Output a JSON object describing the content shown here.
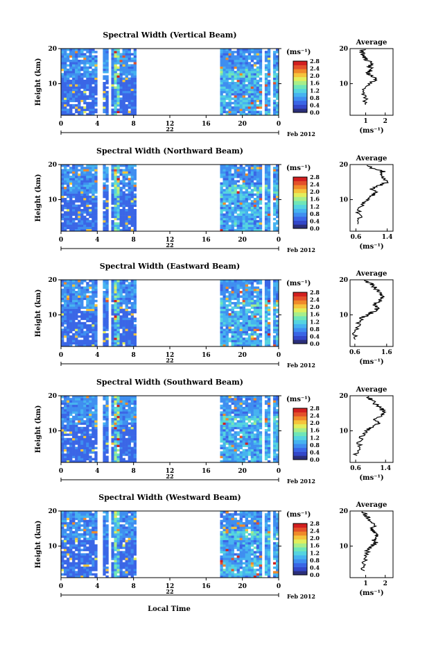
{
  "figure": {
    "xlabel": "Local Time",
    "date_day": "22",
    "date_month": "Feb 2012",
    "ylabel": "Height (km)",
    "unit": "(ms⁻¹)",
    "avg_title": "Average",
    "avg_xlabel": "(ms⁻¹)"
  },
  "colorscale": {
    "colors": [
      "#2b2f7a",
      "#3347c9",
      "#3a66e6",
      "#3f8ef0",
      "#46b3f0",
      "#55d4e0",
      "#6fe6b8",
      "#a8ee8a",
      "#e2ee5c",
      "#f5c43c",
      "#f08a2a",
      "#e3502a",
      "#d21f1f"
    ],
    "labels": [
      "0.0",
      "0.4",
      "0.8",
      "1.2",
      "1.6",
      "2.0",
      "2.4",
      "2.8"
    ]
  },
  "chart_data": [
    {
      "type": "heatmap",
      "title": "Spectral Width (Vertical Beam)",
      "xlim": [
        0,
        24
      ],
      "xticks": [
        "0",
        "4",
        "8",
        "12",
        "16",
        "20",
        "0"
      ],
      "ylim": [
        1,
        20
      ],
      "yticks": [
        "10",
        "20"
      ],
      "variable": "spectral width",
      "units": "ms-1",
      "clim": [
        0,
        3.0
      ],
      "avg": {
        "xlim": [
          0.2,
          2.4
        ],
        "xticks": [
          "1",
          "2"
        ],
        "ylabel_ticks": [
          "10",
          "20"
        ]
      },
      "avg_profile": [
        [
          4,
          0.9
        ],
        [
          6,
          1.0
        ],
        [
          8,
          0.8
        ],
        [
          10,
          1.2
        ],
        [
          11,
          1.5
        ],
        [
          12,
          1.4
        ],
        [
          13,
          1.1
        ],
        [
          14,
          1.3
        ],
        [
          15,
          1.2
        ],
        [
          16,
          1.3
        ],
        [
          17,
          1.0
        ],
        [
          18,
          0.9
        ],
        [
          19,
          0.8
        ],
        [
          20,
          0.9
        ]
      ]
    },
    {
      "type": "heatmap",
      "title": "Spectral Width (Northward Beam)",
      "xlim": [
        0,
        24
      ],
      "xticks": [
        "0",
        "4",
        "8",
        "12",
        "16",
        "20",
        "0"
      ],
      "ylim": [
        1,
        20
      ],
      "yticks": [
        "10",
        "20"
      ],
      "variable": "spectral width",
      "units": "ms-1",
      "clim": [
        0,
        3.0
      ],
      "avg": {
        "xlim": [
          0.45,
          1.55
        ],
        "xticks": [
          "0.6",
          "1.4"
        ],
        "ylabel_ticks": [
          "10",
          "20"
        ]
      },
      "avg_profile": [
        [
          3,
          0.6
        ],
        [
          5,
          0.7
        ],
        [
          7,
          0.65
        ],
        [
          9,
          0.8
        ],
        [
          10,
          0.9
        ],
        [
          11,
          1.0
        ],
        [
          12,
          1.1
        ],
        [
          13,
          1.0
        ],
        [
          14,
          1.2
        ],
        [
          15,
          1.4
        ],
        [
          16,
          1.3
        ],
        [
          17,
          1.2
        ],
        [
          18,
          1.3
        ],
        [
          19,
          1.0
        ],
        [
          20,
          0.9
        ]
      ]
    },
    {
      "type": "heatmap",
      "title": "Spectral Width (Eastward Beam)",
      "xlim": [
        0,
        24
      ],
      "xticks": [
        "0",
        "4",
        "8",
        "12",
        "16",
        "20",
        "0"
      ],
      "ylim": [
        1,
        20
      ],
      "yticks": [
        "10",
        "20"
      ],
      "variable": "spectral width",
      "units": "ms-1",
      "clim": [
        0,
        3.0
      ],
      "avg": {
        "xlim": [
          0.45,
          1.8
        ],
        "xticks": [
          "0.6",
          "1.6"
        ],
        "ylabel_ticks": [
          "10",
          "20"
        ]
      },
      "avg_profile": [
        [
          3,
          0.6
        ],
        [
          5,
          0.6
        ],
        [
          7,
          0.7
        ],
        [
          9,
          0.8
        ],
        [
          10,
          1.0
        ],
        [
          11,
          1.2
        ],
        [
          12,
          1.3
        ],
        [
          13,
          1.2
        ],
        [
          14,
          1.4
        ],
        [
          15,
          1.5
        ],
        [
          16,
          1.4
        ],
        [
          17,
          1.3
        ],
        [
          18,
          1.2
        ],
        [
          19,
          1.1
        ],
        [
          20,
          0.8
        ]
      ]
    },
    {
      "type": "heatmap",
      "title": "Spectral Width (Southward Beam)",
      "xlim": [
        0,
        24
      ],
      "xticks": [
        "0",
        "4",
        "8",
        "12",
        "16",
        "20",
        "0"
      ],
      "ylim": [
        1,
        20
      ],
      "yticks": [
        "10",
        "20"
      ],
      "variable": "spectral width",
      "units": "ms-1",
      "clim": [
        0,
        3.0
      ],
      "avg": {
        "xlim": [
          0.45,
          1.6
        ],
        "xticks": [
          "0.6",
          "1.4"
        ],
        "ylabel_ticks": [
          "10",
          "20"
        ]
      },
      "avg_profile": [
        [
          3,
          0.6
        ],
        [
          5,
          0.7
        ],
        [
          7,
          0.7
        ],
        [
          9,
          0.8
        ],
        [
          10,
          0.9
        ],
        [
          11,
          1.0
        ],
        [
          12,
          1.2
        ],
        [
          13,
          1.1
        ],
        [
          14,
          1.2
        ],
        [
          15,
          1.4
        ],
        [
          16,
          1.3
        ],
        [
          17,
          1.2
        ],
        [
          18,
          1.1
        ],
        [
          19,
          1.0
        ],
        [
          20,
          0.9
        ]
      ]
    },
    {
      "type": "heatmap",
      "title": "Spectral Width (Westward Beam)",
      "xlim": [
        0,
        24
      ],
      "xticks": [
        "0",
        "4",
        "8",
        "12",
        "16",
        "20",
        "0"
      ],
      "ylim": [
        1,
        20
      ],
      "yticks": [
        "10",
        "20"
      ],
      "variable": "spectral width",
      "units": "ms-1",
      "clim": [
        0,
        3.0
      ],
      "avg": {
        "xlim": [
          0.2,
          2.4
        ],
        "xticks": [
          "1",
          "2"
        ],
        "ylabel_ticks": [
          "10",
          "20"
        ]
      },
      "avg_profile": [
        [
          3,
          0.9
        ],
        [
          5,
          0.9
        ],
        [
          7,
          1.0
        ],
        [
          9,
          1.1
        ],
        [
          10,
          1.3
        ],
        [
          11,
          1.5
        ],
        [
          12,
          1.4
        ],
        [
          13,
          1.6
        ],
        [
          14,
          1.4
        ],
        [
          15,
          1.3
        ],
        [
          16,
          1.5
        ],
        [
          17,
          1.2
        ],
        [
          18,
          1.1
        ],
        [
          19,
          1.0
        ],
        [
          20,
          0.9
        ]
      ]
    }
  ]
}
